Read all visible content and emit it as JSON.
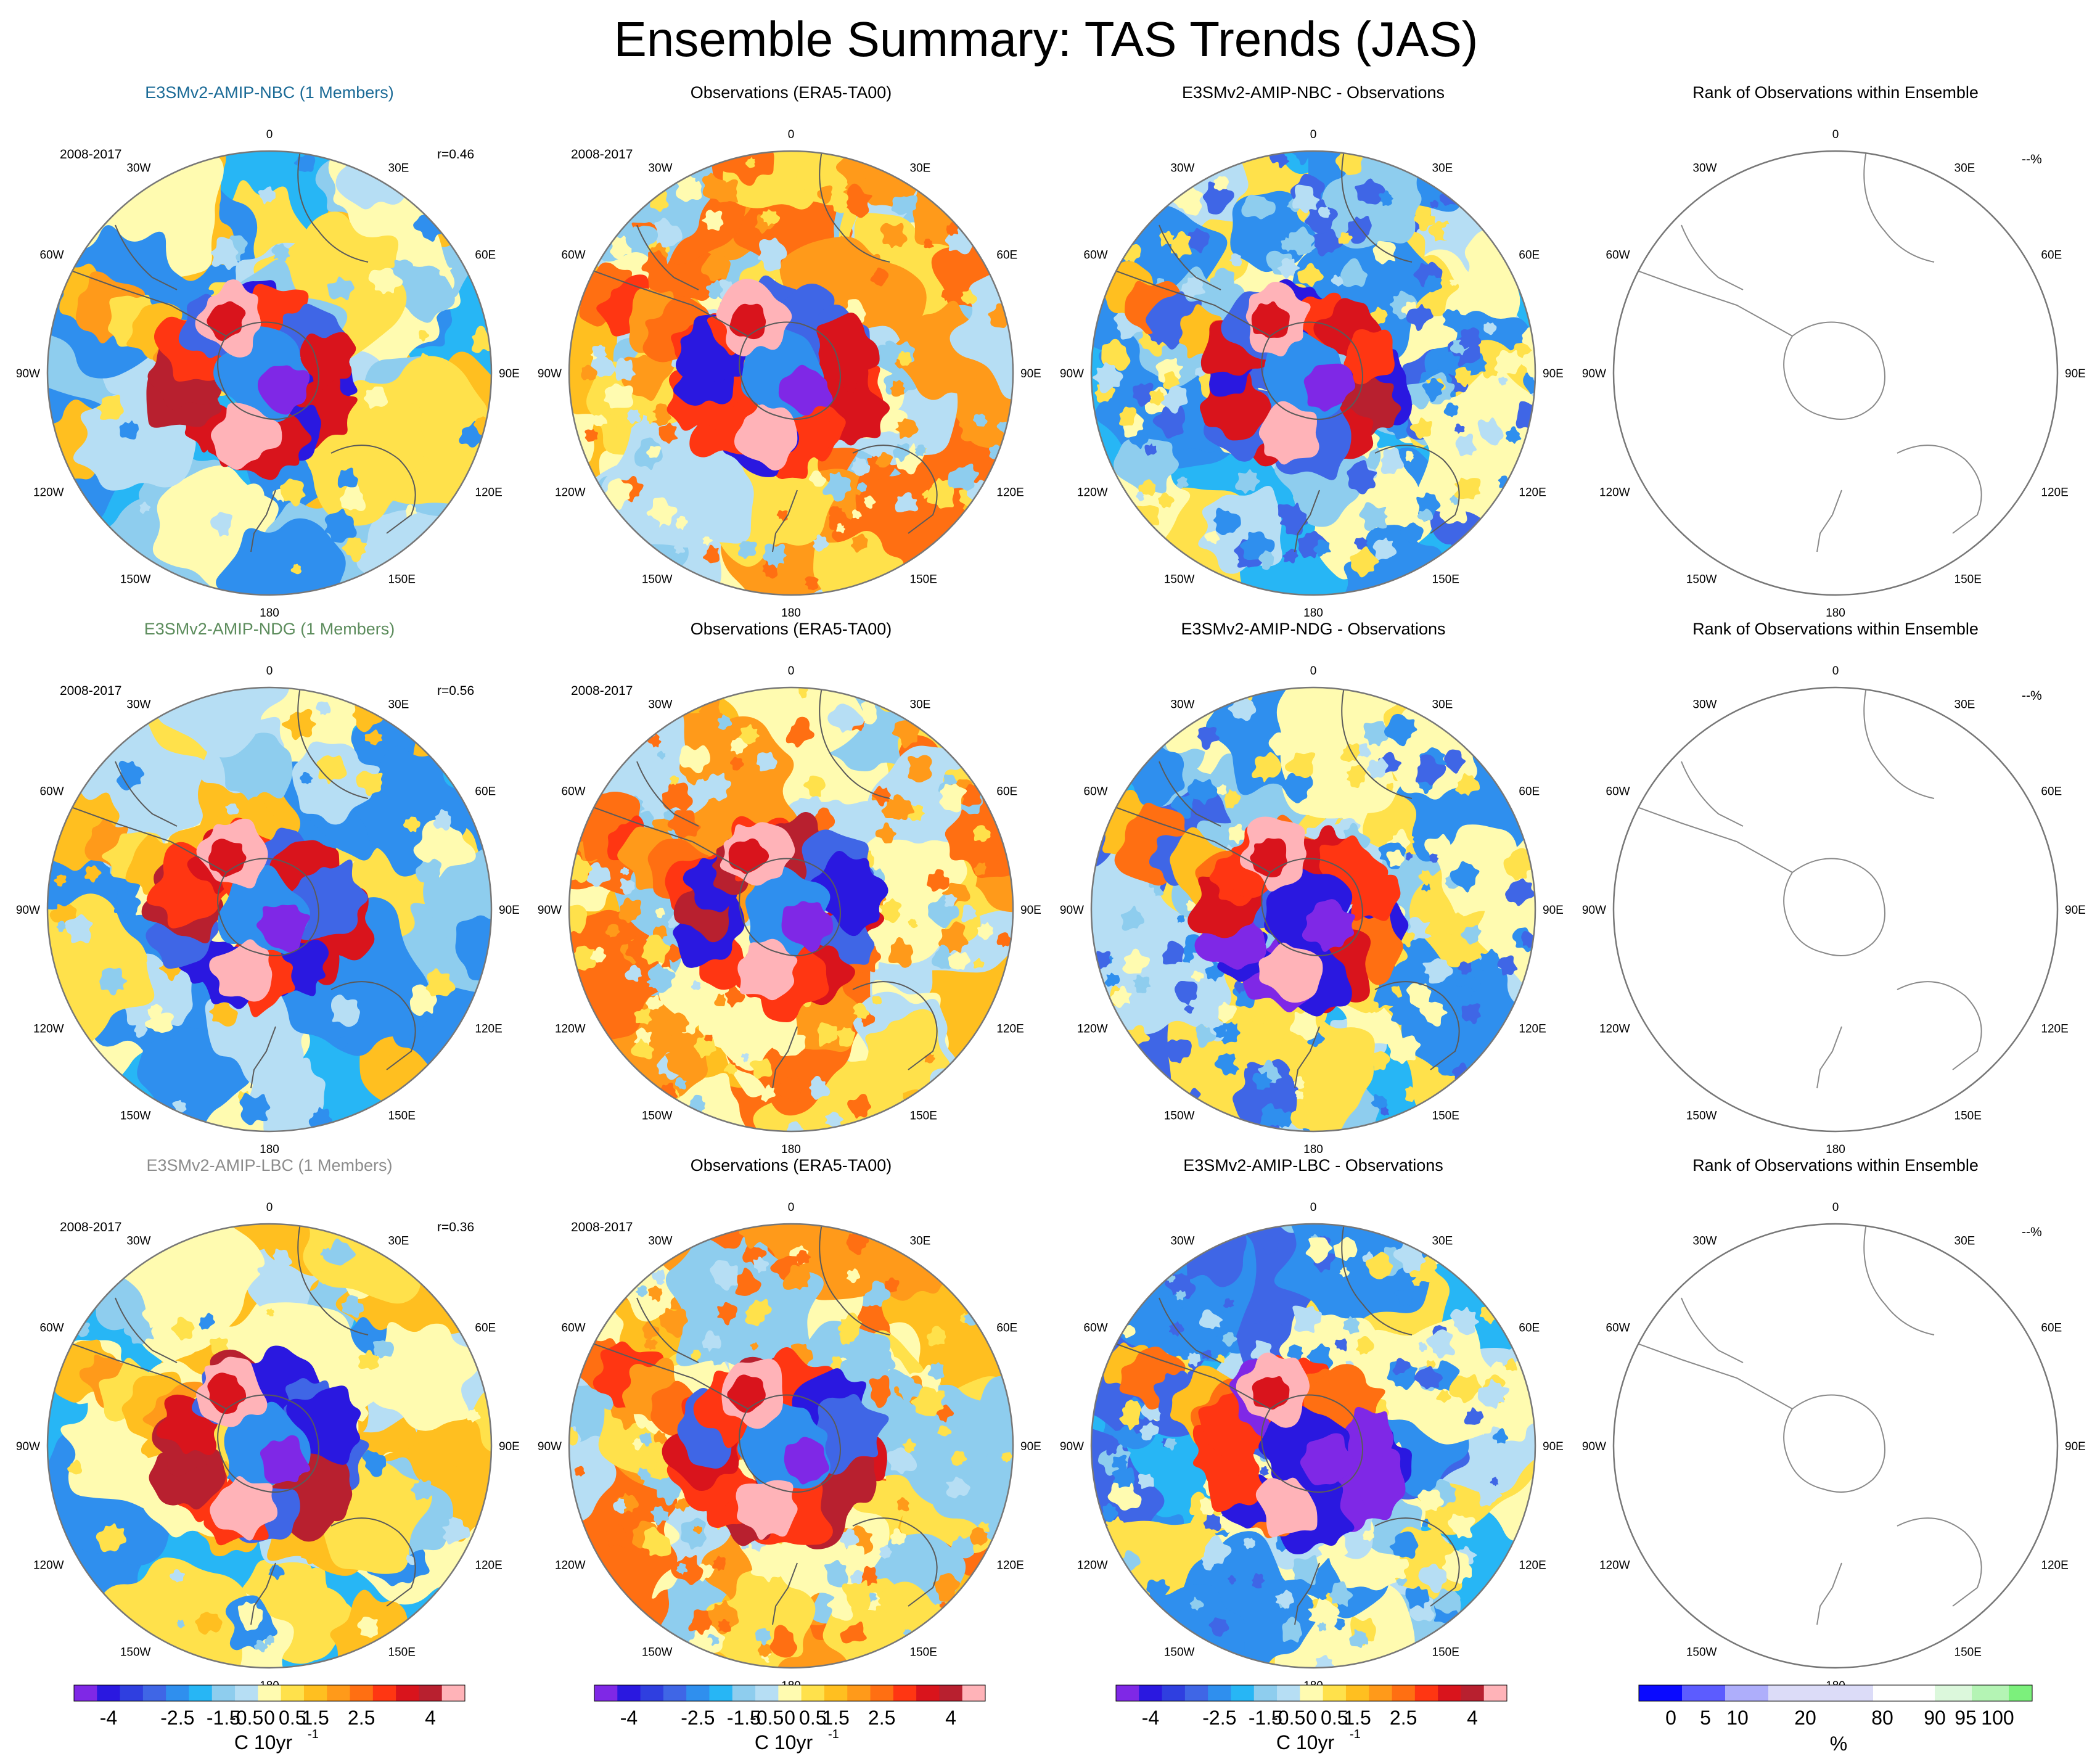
{
  "title": "Ensemble Summary: TAS Trends (JAS)",
  "colors": {
    "trend_palette": [
      "#7f28e6",
      "#2a18e0",
      "#2f3fe0",
      "#3f66e6",
      "#2f8fee",
      "#27b6f5",
      "#8ecdee",
      "#b6def4",
      "#fffbb0",
      "#ffe14b",
      "#ffbf20",
      "#ff9a1a",
      "#ff6f12",
      "#ff3612",
      "#d9141c",
      "#b8202f",
      "#ffb3b8"
    ],
    "rank_palette": [
      "#0a0aff",
      "#5c5cff",
      "#aeaefb",
      "#dcdcf8",
      "#ffffff",
      "#dcf8dc",
      "#b4f4b4",
      "#7cf07c",
      "#14f014"
    ],
    "model_nbc": "#1a6a96",
    "model_ndg": "#5c8c5c",
    "model_lbc": "#8c8c8c"
  },
  "icons": {
    "map_outline": "coastline-outline"
  },
  "rows": [
    {
      "model_title": "E3SMv2-AMIP-NBC (1 Members)",
      "diff_title": "E3SMv2-AMIP-NBC - Observations",
      "obs_title": "Observations (ERA5-TA00)",
      "rank_title": "Rank of Observations within Ensemble",
      "period": "2008-2017",
      "model_corr": "r=0.46",
      "obs_period": "2008-2017",
      "rank_pct": "--%"
    },
    {
      "model_title": "E3SMv2-AMIP-NDG (1 Members)",
      "diff_title": "E3SMv2-AMIP-NDG - Observations",
      "obs_title": "Observations (ERA5-TA00)",
      "rank_title": "Rank of Observations within Ensemble",
      "period": "2008-2017",
      "model_corr": "r=0.56",
      "obs_period": "2008-2017",
      "rank_pct": "--%"
    },
    {
      "model_title": "E3SMv2-AMIP-LBC (1 Members)",
      "diff_title": "E3SMv2-AMIP-LBC - Observations",
      "obs_title": "Observations (ERA5-TA00)",
      "rank_title": "Rank of Observations within Ensemble",
      "period": "2008-2017",
      "model_corr": "r=0.36",
      "obs_period": "2008-2017",
      "rank_pct": "--%"
    }
  ],
  "lon_labels": [
    "0",
    "30E",
    "60E",
    "90E",
    "120E",
    "150E",
    "180",
    "150W",
    "120W",
    "90W",
    "60W",
    "30W"
  ],
  "chart_data": {
    "type": "heatmap",
    "projection": "south-polar-stereographic",
    "variable": "TAS trend",
    "season": "JAS",
    "layout": {
      "rows": 3,
      "cols": 4
    },
    "trend_colorbar": {
      "tick_labels": [
        "-4",
        "-2.5",
        "-1.5",
        "-0.5",
        "0",
        "0.5",
        "1.5",
        "2.5",
        "4"
      ],
      "tick_values": [
        -4,
        -2.5,
        -1.5,
        -0.5,
        0,
        0.5,
        1.5,
        2.5,
        4
      ],
      "range": [
        -5,
        5
      ],
      "bins": 17,
      "unit_label": "C 10yr",
      "unit_exponent": "-1"
    },
    "rank_colorbar": {
      "tick_labels": [
        "0",
        "5",
        "10",
        "20",
        "80",
        "90",
        "95",
        "100"
      ],
      "boundaries": [
        0,
        5,
        10,
        20,
        50,
        80,
        90,
        95,
        100
      ],
      "unit_label": "%"
    }
  }
}
